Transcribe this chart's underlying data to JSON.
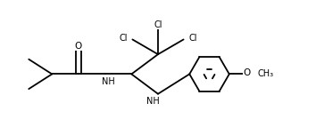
{
  "bg_color": "#ffffff",
  "line_color": "#000000",
  "line_width": 1.3,
  "font_size": 7.0,
  "xlim": [
    0.0,
    9.5
  ],
  "ylim": [
    0.5,
    4.5
  ]
}
